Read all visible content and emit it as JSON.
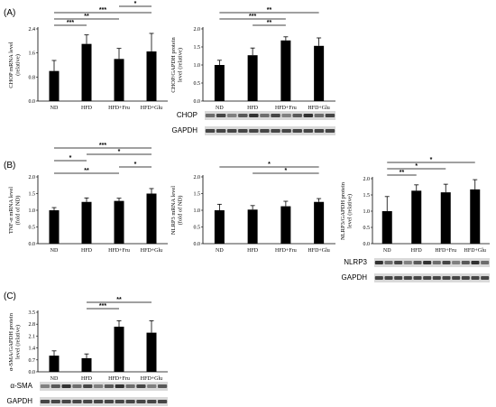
{
  "panels": [
    {
      "id": "A",
      "label": "(A)"
    },
    {
      "id": "B",
      "label": "(B)"
    },
    {
      "id": "C",
      "label": "(C)"
    }
  ],
  "chart_data": [
    {
      "id": "chop-mrna",
      "type": "bar",
      "categories": [
        "ND",
        "HFD",
        "HFD+Fru",
        "HFD+Glu"
      ],
      "values": [
        1.0,
        1.9,
        1.4,
        1.65
      ],
      "errors": [
        0.35,
        0.3,
        0.35,
        0.6
      ],
      "ylabel": "CHOP mRNA level\n(relative)",
      "ylim": [
        0,
        2.4
      ],
      "yticks": [
        "0.0",
        "0.8",
        "1.6",
        "2.4"
      ],
      "significance": [
        {
          "from": 0,
          "to": 1,
          "label": "***"
        },
        {
          "from": 0,
          "to": 2,
          "label": "**"
        },
        {
          "from": 0,
          "to": 3,
          "label": "***"
        },
        {
          "from": 2,
          "to": 3,
          "label": "*"
        }
      ],
      "blots": []
    },
    {
      "id": "chop-protein",
      "type": "bar",
      "categories": [
        "ND",
        "HFD",
        "HFD+Fru",
        "HFD+Glu"
      ],
      "values": [
        1.0,
        1.27,
        1.68,
        1.53
      ],
      "errors": [
        0.13,
        0.2,
        0.1,
        0.22
      ],
      "ylabel": "CHOP/GAPDH protein\nlevel (relative)",
      "ylim": [
        0,
        2.0
      ],
      "yticks": [
        "0.0",
        "0.5",
        "1.0",
        "1.5",
        "2.0"
      ],
      "significance": [
        {
          "from": 1,
          "to": 2,
          "label": "**"
        },
        {
          "from": 0,
          "to": 2,
          "label": "***"
        },
        {
          "from": 0,
          "to": 3,
          "label": "**"
        }
      ],
      "blots": [
        "CHOP",
        "GAPDH"
      ]
    },
    {
      "id": "tnf-mrna",
      "type": "bar",
      "categories": [
        "ND",
        "HFD",
        "HFD+Fru",
        "HFD+Glu"
      ],
      "values": [
        1.0,
        1.25,
        1.28,
        1.5
      ],
      "errors": [
        0.08,
        0.12,
        0.08,
        0.15
      ],
      "ylabel": "TNF-α mRNA level\n(fold of ND)",
      "ylim": [
        0,
        2.0
      ],
      "yticks": [
        "0.0",
        "0.5",
        "1.0",
        "1.5",
        "2.0"
      ],
      "significance": [
        {
          "from": 0,
          "to": 2,
          "label": "**"
        },
        {
          "from": 2,
          "to": 3,
          "label": "*"
        },
        {
          "from": 0,
          "to": 1,
          "label": "*"
        },
        {
          "from": 1,
          "to": 3,
          "label": "*"
        },
        {
          "from": 0,
          "to": 3,
          "label": "***"
        }
      ],
      "blots": []
    },
    {
      "id": "nlrp3-mrna",
      "type": "bar",
      "categories": [
        "ND",
        "HFD",
        "HFD+Fru",
        "HFD+Glu"
      ],
      "values": [
        1.0,
        1.02,
        1.12,
        1.25
      ],
      "errors": [
        0.18,
        0.12,
        0.15,
        0.1
      ],
      "ylabel": "NLRP3 mRNA level\n(fold of ND)",
      "ylim": [
        0,
        2.0
      ],
      "yticks": [
        "0.0",
        "0.5",
        "1.0",
        "1.5",
        "2.0"
      ],
      "significance": [
        {
          "from": 1,
          "to": 3,
          "label": "*"
        },
        {
          "from": 0,
          "to": 3,
          "label": "*"
        }
      ],
      "blots": []
    },
    {
      "id": "nlrp3-protein",
      "type": "bar",
      "categories": [
        "ND",
        "HFD",
        "HFD+Fru",
        "HFD+Glu"
      ],
      "values": [
        1.0,
        1.63,
        1.58,
        1.67
      ],
      "errors": [
        0.45,
        0.18,
        0.25,
        0.3
      ],
      "ylabel": "NLRP3/GAPDH protein\nlevel (relative)",
      "ylim": [
        0,
        2.0
      ],
      "yticks": [
        "0.0",
        "0.5",
        "1.0",
        "1.5",
        "2.0"
      ],
      "significance": [
        {
          "from": 0,
          "to": 1,
          "label": "**"
        },
        {
          "from": 0,
          "to": 2,
          "label": "*"
        },
        {
          "from": 0,
          "to": 3,
          "label": "*"
        }
      ],
      "blots": [
        "NLRP3",
        "GAPDH"
      ]
    },
    {
      "id": "asma-protein",
      "type": "bar",
      "categories": [
        "ND",
        "HFD",
        "HFD+Fru",
        "HFD+Glu"
      ],
      "values": [
        0.95,
        0.8,
        2.65,
        2.3
      ],
      "errors": [
        0.28,
        0.25,
        0.35,
        0.7
      ],
      "ylabel": "α-SMA/GAPDH protein\nlevel (relative)",
      "ylim": [
        0,
        3.5
      ],
      "yticks": [
        "0.0",
        "0.7",
        "1.4",
        "2.1",
        "2.8",
        "3.5"
      ],
      "significance": [
        {
          "from": 1,
          "to": 2,
          "label": "***"
        },
        {
          "from": 1,
          "to": 3,
          "label": "**"
        }
      ],
      "blots": [
        "α-SMA",
        "GAPDH"
      ]
    }
  ]
}
